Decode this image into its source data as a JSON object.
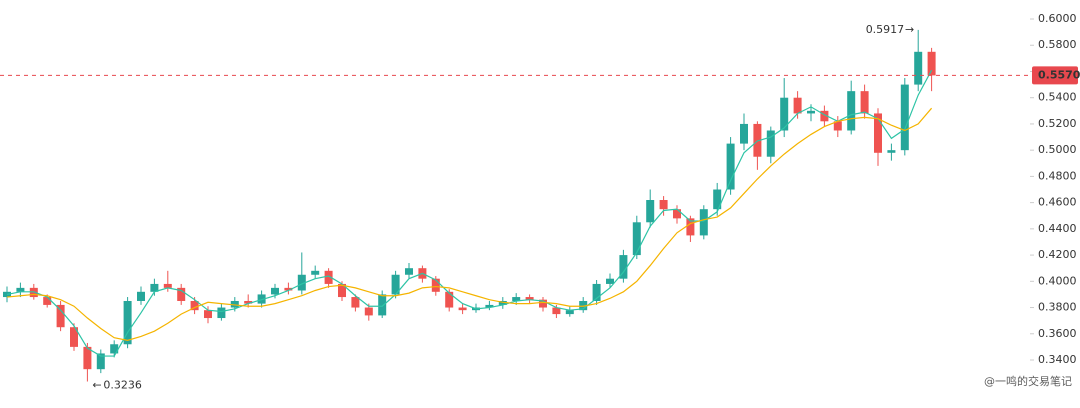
{
  "chart_data": {
    "type": "candlestick",
    "open": [
      0.388,
      0.392,
      0.395,
      0.388,
      0.382,
      0.365,
      0.35,
      0.333,
      0.345,
      0.352,
      0.385,
      0.392,
      0.398,
      0.395,
      0.385,
      0.378,
      0.372,
      0.38,
      0.385,
      0.383,
      0.39,
      0.395,
      0.393,
      0.405,
      0.408,
      0.398,
      0.388,
      0.38,
      0.374,
      0.39,
      0.405,
      0.41,
      0.402,
      0.392,
      0.38,
      0.378,
      0.38,
      0.382,
      0.385,
      0.388,
      0.386,
      0.38,
      0.375,
      0.378,
      0.385,
      0.398,
      0.402,
      0.42,
      0.445,
      0.462,
      0.455,
      0.448,
      0.435,
      0.455,
      0.47,
      0.505,
      0.52,
      0.495,
      0.515,
      0.54,
      0.528,
      0.53,
      0.522,
      0.515,
      0.545,
      0.528,
      0.498,
      0.5,
      0.55,
      0.575
    ],
    "high": [
      0.396,
      0.399,
      0.398,
      0.39,
      0.385,
      0.368,
      0.353,
      0.348,
      0.355,
      0.388,
      0.396,
      0.402,
      0.408,
      0.398,
      0.388,
      0.381,
      0.383,
      0.388,
      0.39,
      0.393,
      0.398,
      0.399,
      0.422,
      0.412,
      0.41,
      0.4,
      0.39,
      0.383,
      0.393,
      0.408,
      0.414,
      0.412,
      0.404,
      0.394,
      0.383,
      0.383,
      0.385,
      0.388,
      0.391,
      0.39,
      0.388,
      0.382,
      0.381,
      0.388,
      0.401,
      0.406,
      0.424,
      0.45,
      0.47,
      0.465,
      0.458,
      0.45,
      0.458,
      0.475,
      0.51,
      0.528,
      0.522,
      0.518,
      0.555,
      0.545,
      0.535,
      0.534,
      0.526,
      0.553,
      0.55,
      0.532,
      0.505,
      0.555,
      0.5917,
      0.578
    ],
    "low": [
      0.384,
      0.388,
      0.386,
      0.38,
      0.362,
      0.347,
      0.3236,
      0.33,
      0.342,
      0.349,
      0.382,
      0.389,
      0.392,
      0.382,
      0.375,
      0.368,
      0.37,
      0.377,
      0.38,
      0.38,
      0.387,
      0.39,
      0.39,
      0.402,
      0.395,
      0.385,
      0.377,
      0.37,
      0.372,
      0.387,
      0.402,
      0.399,
      0.389,
      0.377,
      0.375,
      0.376,
      0.378,
      0.379,
      0.382,
      0.383,
      0.377,
      0.372,
      0.373,
      0.376,
      0.382,
      0.395,
      0.399,
      0.417,
      0.441,
      0.45,
      0.444,
      0.43,
      0.432,
      0.45,
      0.466,
      0.5,
      0.485,
      0.49,
      0.51,
      0.524,
      0.522,
      0.518,
      0.51,
      0.512,
      0.524,
      0.488,
      0.492,
      0.496,
      0.545,
      0.545
    ],
    "close": [
      0.392,
      0.395,
      0.388,
      0.382,
      0.365,
      0.35,
      0.333,
      0.345,
      0.352,
      0.385,
      0.392,
      0.398,
      0.395,
      0.385,
      0.378,
      0.372,
      0.38,
      0.385,
      0.383,
      0.39,
      0.395,
      0.393,
      0.405,
      0.408,
      0.398,
      0.388,
      0.38,
      0.374,
      0.39,
      0.405,
      0.41,
      0.402,
      0.392,
      0.38,
      0.378,
      0.38,
      0.382,
      0.385,
      0.388,
      0.386,
      0.38,
      0.375,
      0.378,
      0.385,
      0.398,
      0.402,
      0.42,
      0.445,
      0.462,
      0.455,
      0.448,
      0.435,
      0.455,
      0.47,
      0.505,
      0.52,
      0.495,
      0.515,
      0.54,
      0.528,
      0.53,
      0.522,
      0.515,
      0.545,
      0.528,
      0.498,
      0.5,
      0.55,
      0.575,
      0.557
    ],
    "up_color": "#26a69a",
    "down_color": "#ef5350",
    "lines": [
      {
        "color": "#2ec4a6",
        "values": [
          0.39,
          0.392,
          0.392,
          0.388,
          0.378,
          0.366,
          0.349,
          0.343,
          0.343,
          0.361,
          0.376,
          0.392,
          0.395,
          0.393,
          0.386,
          0.378,
          0.377,
          0.379,
          0.383,
          0.386,
          0.389,
          0.393,
          0.398,
          0.402,
          0.404,
          0.398,
          0.389,
          0.381,
          0.381,
          0.39,
          0.402,
          0.406,
          0.401,
          0.391,
          0.383,
          0.379,
          0.38,
          0.382,
          0.385,
          0.386,
          0.385,
          0.38,
          0.378,
          0.379,
          0.387,
          0.395,
          0.407,
          0.422,
          0.442,
          0.454,
          0.455,
          0.446,
          0.446,
          0.453,
          0.477,
          0.498,
          0.507,
          0.51,
          0.517,
          0.528,
          0.533,
          0.527,
          0.522,
          0.527,
          0.529,
          0.524,
          0.509,
          0.516,
          0.542,
          0.561
        ]
      },
      {
        "color": "#f5b400",
        "values": [
          0.388,
          0.389,
          0.39,
          0.389,
          0.386,
          0.381,
          0.372,
          0.364,
          0.357,
          0.355,
          0.358,
          0.362,
          0.368,
          0.375,
          0.38,
          0.384,
          0.383,
          0.382,
          0.381,
          0.381,
          0.383,
          0.386,
          0.389,
          0.393,
          0.396,
          0.397,
          0.395,
          0.392,
          0.389,
          0.389,
          0.391,
          0.395,
          0.396,
          0.395,
          0.392,
          0.389,
          0.386,
          0.384,
          0.383,
          0.383,
          0.384,
          0.383,
          0.381,
          0.381,
          0.383,
          0.387,
          0.392,
          0.4,
          0.412,
          0.425,
          0.437,
          0.444,
          0.447,
          0.449,
          0.456,
          0.467,
          0.478,
          0.488,
          0.497,
          0.505,
          0.512,
          0.518,
          0.522,
          0.524,
          0.525,
          0.524,
          0.519,
          0.515,
          0.52,
          0.532
        ]
      }
    ],
    "ylim": [
      0.3034,
      0.6145
    ],
    "yticks": [
      {
        "value": 0.34,
        "label": "0.3400"
      },
      {
        "value": 0.36,
        "label": "0.3600"
      },
      {
        "value": 0.38,
        "label": "0.3800"
      },
      {
        "value": 0.4,
        "label": "0.4000"
      },
      {
        "value": 0.42,
        "label": "0.4200"
      },
      {
        "value": 0.44,
        "label": "0.4400"
      },
      {
        "value": 0.46,
        "label": "0.4600"
      },
      {
        "value": 0.48,
        "label": "0.4800"
      },
      {
        "value": 0.5,
        "label": "0.5000"
      },
      {
        "value": 0.52,
        "label": "0.5200"
      },
      {
        "value": 0.54,
        "label": "0.5400"
      },
      {
        "value": 0.56,
        "label": "0.5600"
      },
      {
        "value": 0.58,
        "label": "0.5800"
      },
      {
        "value": 0.6,
        "label": "0.6000"
      }
    ],
    "last_price": {
      "value": 0.557,
      "label": "0.5570",
      "color": "#e8484e"
    },
    "high_mark": {
      "value": 0.5917,
      "label": "0.5917",
      "arrow": "→"
    },
    "low_mark": {
      "value": 0.3236,
      "label": "0.3236",
      "arrow": "←"
    },
    "watermark": "@一鸣的交易笔记"
  }
}
